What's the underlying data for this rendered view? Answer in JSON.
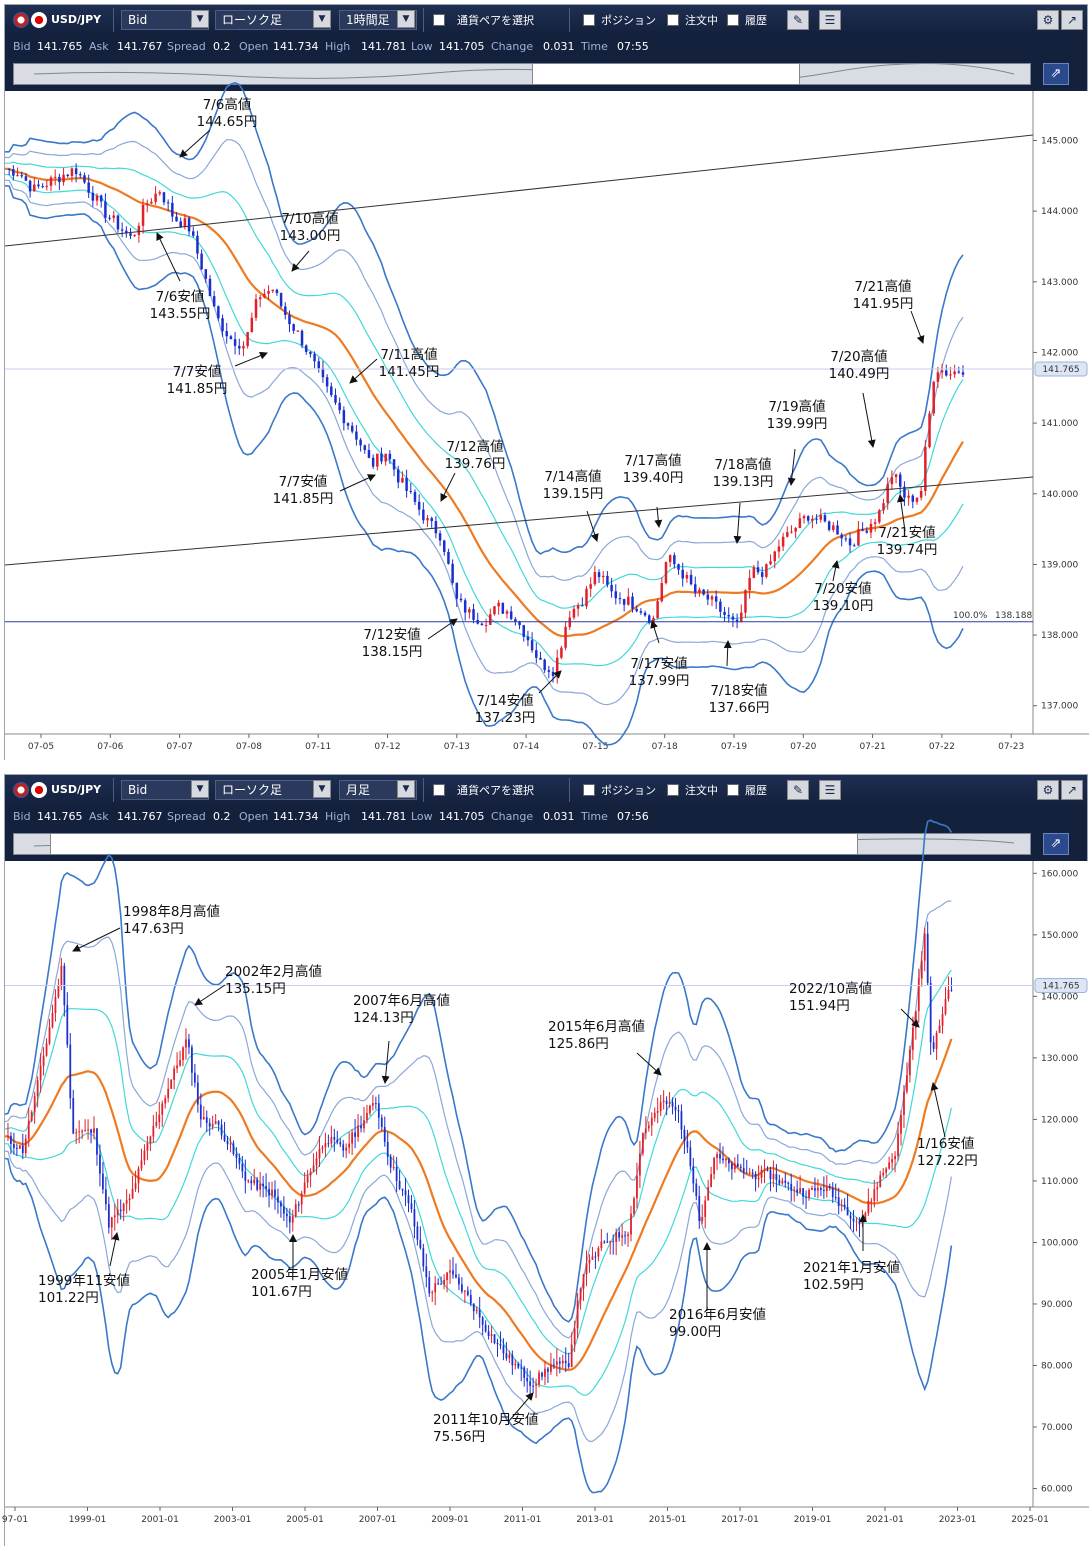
{
  "toolbar": {
    "pair": "USD/JPY",
    "price_type": "Bid",
    "chart_type": "ローソク足",
    "select_pair": "通貨ペアを選択",
    "position": "ポジション",
    "orders": "注文中",
    "history": "履歴"
  },
  "quote": {
    "bid_label": "Bid",
    "bid": "141.765",
    "ask_label": "Ask",
    "ask": "141.767",
    "spread_label": "Spread",
    "spread": "0.2",
    "open_label": "Open",
    "open": "141.734",
    "high_label": "High",
    "high": "141.781",
    "low_label": "Low",
    "low": "141.705",
    "change_label": "Change",
    "change": "0.031",
    "time_label": "Time"
  },
  "charts": [
    {
      "timeframe": "1時間足",
      "time": "07:55",
      "current_price": "141.765",
      "fib_label": "100.0%",
      "fib_value": "138.188",
      "y_ticks": [
        "145.000",
        "144.000",
        "143.000",
        "142.000",
        "141.000",
        "140.000",
        "139.000",
        "138.000",
        "137.000"
      ],
      "x_ticks": [
        "07-05",
        "07-06",
        "07-07",
        "07-08",
        "07-11",
        "07-12",
        "07-13",
        "07-14",
        "07-15",
        "07-18",
        "07-19",
        "07-20",
        "07-21",
        "07-22",
        "07-23"
      ],
      "annotations": [
        {
          "line1": "7/6高値",
          "line2": "144.65円"
        },
        {
          "line1": "7/6安値",
          "line2": "143.55円"
        },
        {
          "line1": "7/10高値",
          "line2": "143.00円"
        },
        {
          "line1": "7/7安値",
          "line2": "141.85円"
        },
        {
          "line1": "7/11高値",
          "line2": "141.45円"
        },
        {
          "line1": "7/7安値",
          "line2": "141.85円"
        },
        {
          "line1": "7/12高値",
          "line2": "139.76円"
        },
        {
          "line1": "7/12安値",
          "line2": "138.15円"
        },
        {
          "line1": "7/14高値",
          "line2": "139.15円"
        },
        {
          "line1": "7/14安値",
          "line2": "137.23円"
        },
        {
          "line1": "7/17高値",
          "line2": "139.40円"
        },
        {
          "line1": "7/17安値",
          "line2": "137.99円"
        },
        {
          "line1": "7/18高値",
          "line2": "139.13円"
        },
        {
          "line1": "7/18安値",
          "line2": "137.66円"
        },
        {
          "line1": "7/19高値",
          "line2": "139.99円"
        },
        {
          "line1": "7/20高値",
          "line2": "140.49円"
        },
        {
          "line1": "7/20安値",
          "line2": "139.10円"
        },
        {
          "line1": "7/21高値",
          "line2": "141.95円"
        },
        {
          "line1": "7/21安値",
          "line2": "139.74円"
        }
      ]
    },
    {
      "timeframe": "月足",
      "time": "07:56",
      "current_price": "141.765",
      "y_ticks": [
        "160.000",
        "150.000",
        "140.000",
        "130.000",
        "120.000",
        "110.000",
        "100.000",
        "90.000",
        "80.000",
        "70.000",
        "60.000"
      ],
      "x_ticks": [
        "97-01",
        "1999-01",
        "2001-01",
        "2003-01",
        "2005-01",
        "2007-01",
        "2009-01",
        "2011-01",
        "2013-01",
        "2015-01",
        "2017-01",
        "2019-01",
        "2021-01",
        "2023-01",
        "2025-01"
      ],
      "annotations": [
        {
          "line1": "1998年8月高値",
          "line2": "147.63円"
        },
        {
          "line1": "1999年11安値",
          "line2": "101.22円"
        },
        {
          "line1": "2002年2月高値",
          "line2": "135.15円"
        },
        {
          "line1": "2005年1月安値",
          "line2": "101.67円"
        },
        {
          "line1": "2007年6月高値",
          "line2": "124.13円"
        },
        {
          "line1": "2011年10月安値",
          "line2": "75.56円"
        },
        {
          "line1": "2015年6月高値",
          "line2": "125.86円"
        },
        {
          "line1": "2016年6月安値",
          "line2": "99.00円"
        },
        {
          "line1": "2021年1月安値",
          "line2": "102.59円"
        },
        {
          "line1": "2022/10高値",
          "line2": "151.94円"
        },
        {
          "line1": "1/16安値",
          "line2": "127.22円"
        }
      ]
    }
  ],
  "chart_data": [
    {
      "type": "candlestick",
      "timeframe": "1時間足",
      "ylim": [
        136.6,
        145.7
      ],
      "x_labels": [
        "07-05",
        "07-06",
        "07-07",
        "07-08",
        "07-11",
        "07-12",
        "07-13",
        "07-14",
        "07-15",
        "07-18",
        "07-19",
        "07-20",
        "07-21",
        "07-22",
        "07-23"
      ],
      "close_path": [
        [
          0,
          144.6
        ],
        [
          1,
          144.55
        ],
        [
          2,
          144.3
        ],
        [
          3,
          144.4
        ],
        [
          4,
          144.5
        ],
        [
          5,
          144.6
        ],
        [
          6,
          144.3
        ],
        [
          7,
          144.0
        ],
        [
          8,
          143.8
        ],
        [
          9,
          143.6
        ],
        [
          10,
          144.1
        ],
        [
          11,
          144.3
        ],
        [
          12,
          143.9
        ],
        [
          13,
          143.8
        ],
        [
          14,
          143.2
        ],
        [
          15,
          142.5
        ],
        [
          16,
          142.2
        ],
        [
          17,
          142.1
        ],
        [
          18,
          142.8
        ],
        [
          19,
          142.9
        ],
        [
          20,
          142.5
        ],
        [
          21,
          142.2
        ],
        [
          22,
          141.8
        ],
        [
          23,
          141.4
        ],
        [
          24,
          141.1
        ],
        [
          25,
          140.8
        ],
        [
          26,
          140.4
        ],
        [
          27,
          140.6
        ],
        [
          28,
          140.2
        ],
        [
          29,
          139.9
        ],
        [
          30,
          139.6
        ],
        [
          31,
          139.4
        ],
        [
          32,
          138.5
        ],
        [
          33,
          138.3
        ],
        [
          34,
          138.2
        ],
        [
          35,
          138.4
        ],
        [
          36,
          138.3
        ],
        [
          37,
          138.0
        ],
        [
          38,
          137.6
        ],
        [
          39,
          137.5
        ],
        [
          40,
          138.3
        ],
        [
          41,
          138.5
        ],
        [
          42,
          138.9
        ],
        [
          43,
          138.6
        ],
        [
          44,
          138.5
        ],
        [
          45,
          138.4
        ],
        [
          46,
          138.2
        ],
        [
          47,
          139.1
        ],
        [
          48,
          138.9
        ],
        [
          49,
          138.6
        ],
        [
          50,
          138.5
        ],
        [
          51,
          138.3
        ],
        [
          52,
          138.1
        ],
        [
          53,
          138.9
        ],
        [
          54,
          138.9
        ],
        [
          55,
          139.3
        ],
        [
          56,
          139.5
        ],
        [
          57,
          139.7
        ],
        [
          58,
          139.6
        ],
        [
          59,
          139.5
        ],
        [
          60,
          139.3
        ],
        [
          61,
          139.5
        ],
        [
          62,
          139.7
        ],
        [
          63,
          140.3
        ],
        [
          64,
          139.9
        ],
        [
          65,
          140.0
        ],
        [
          66,
          141.8
        ],
        [
          67,
          141.7
        ],
        [
          68,
          141.77
        ]
      ],
      "levels": {
        "fib_100": 138.188,
        "current": 141.765
      }
    },
    {
      "type": "candlestick",
      "timeframe": "月足",
      "ylim": [
        57,
        162
      ],
      "x_labels": [
        "97-01",
        "1999-01",
        "2001-01",
        "2003-01",
        "2005-01",
        "2007-01",
        "2009-01",
        "2011-01",
        "2013-01",
        "2015-01",
        "2017-01",
        "2019-01",
        "2021-01",
        "2023-01",
        "2025-01"
      ],
      "close_path": [
        [
          1997.0,
          117
        ],
        [
          1997.5,
          115
        ],
        [
          1998.0,
          128
        ],
        [
          1998.6,
          145
        ],
        [
          1998.9,
          118
        ],
        [
          1999.5,
          118
        ],
        [
          1999.9,
          103
        ],
        [
          2000.5,
          107
        ],
        [
          2001.0,
          116
        ],
        [
          2001.5,
          124
        ],
        [
          2002.1,
          133
        ],
        [
          2002.5,
          120
        ],
        [
          2003.0,
          119
        ],
        [
          2003.8,
          110
        ],
        [
          2004.5,
          108
        ],
        [
          2005.0,
          103
        ],
        [
          2005.5,
          111
        ],
        [
          2006.0,
          117
        ],
        [
          2006.5,
          115
        ],
        [
          2007.4,
          123
        ],
        [
          2007.8,
          113
        ],
        [
          2008.4,
          105
        ],
        [
          2008.9,
          92
        ],
        [
          2009.5,
          95
        ],
        [
          2010.0,
          91
        ],
        [
          2010.5,
          86
        ],
        [
          2011.0,
          82
        ],
        [
          2011.8,
          77
        ],
        [
          2012.3,
          80
        ],
        [
          2012.8,
          80
        ],
        [
          2013.2,
          95
        ],
        [
          2013.8,
          100
        ],
        [
          2014.5,
          102
        ],
        [
          2014.9,
          118
        ],
        [
          2015.5,
          123
        ],
        [
          2015.9,
          121
        ],
        [
          2016.4,
          108
        ],
        [
          2016.5,
          103
        ],
        [
          2016.9,
          114
        ],
        [
          2017.5,
          112
        ],
        [
          2018.0,
          111
        ],
        [
          2018.5,
          111
        ],
        [
          2019.0,
          109
        ],
        [
          2019.5,
          108
        ],
        [
          2020.0,
          109
        ],
        [
          2020.5,
          106
        ],
        [
          2021.0,
          103
        ],
        [
          2021.5,
          110
        ],
        [
          2022.0,
          115
        ],
        [
          2022.5,
          136
        ],
        [
          2022.8,
          150
        ],
        [
          2023.0,
          130
        ],
        [
          2023.4,
          140
        ],
        [
          2023.55,
          141.8
        ]
      ],
      "levels": {
        "current": 141.765
      }
    }
  ]
}
